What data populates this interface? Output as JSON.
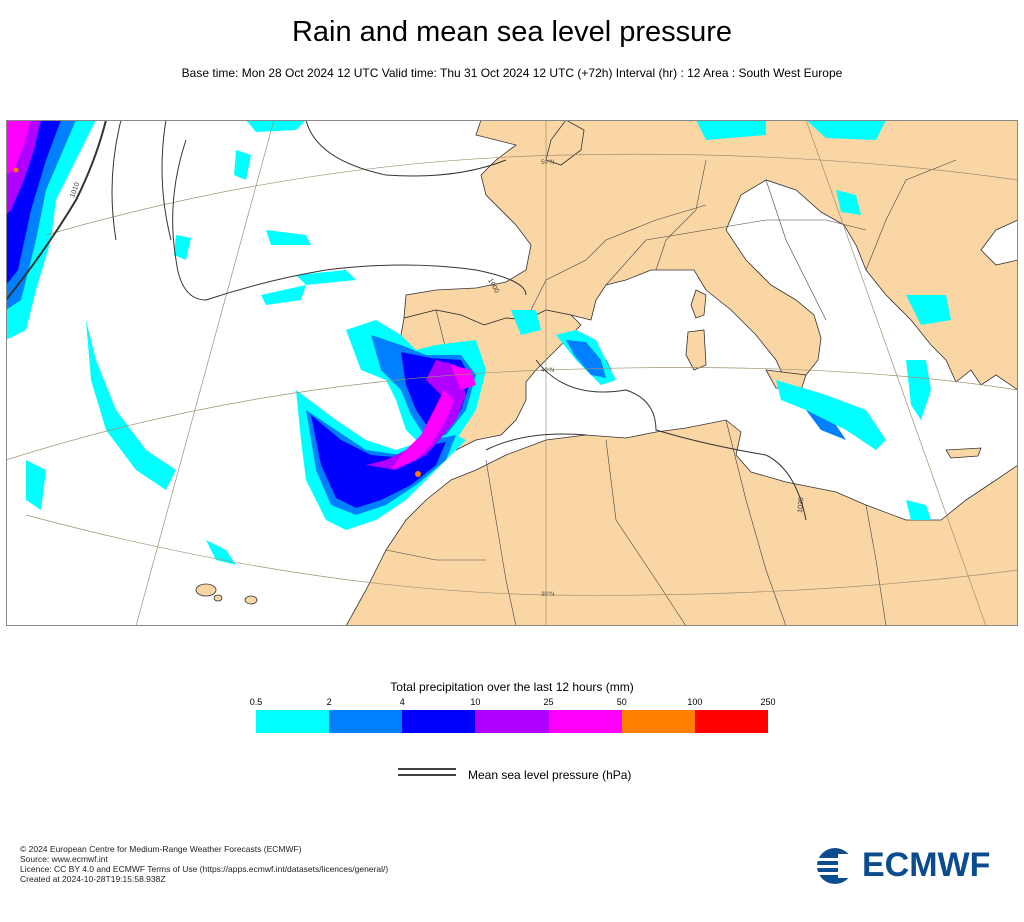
{
  "header": {
    "title": "Rain and mean sea level pressure",
    "subtitle": "Base time: Mon 28 Oct 2024 12 UTC Valid time: Thu 31 Oct 2024 12 UTC (+72h) Interval (hr) : 12 Area : South West Europe"
  },
  "map": {
    "lat_labels": [
      "50°N",
      "40°N",
      "30°N"
    ],
    "isobar_labels": [
      "1010",
      "1000",
      "1020"
    ],
    "colors": {
      "land": "#fad6a5",
      "sea": "#ffffff",
      "border": "#333333"
    }
  },
  "legend": {
    "title": "Total precipitation over the last 12 hours (mm)",
    "ticks": [
      "0.5",
      "2",
      "4",
      "10",
      "25",
      "50",
      "100",
      "250"
    ],
    "colors": [
      "#00ffff",
      "#0080ff",
      "#0000ff",
      "#b000ff",
      "#ff00ff",
      "#ff8000",
      "#ff0000"
    ],
    "pressure_label": "Mean sea level pressure (hPa)"
  },
  "footer": {
    "line1": "© 2024 European Centre for Medium-Range Weather Forecasts (ECMWF)",
    "line2": "Source: www.ecmwf.int",
    "line3": "Licence: CC BY 4.0 and ECMWF Terms of Use (https://apps.ecmwf.int/datasets/licences/general/)",
    "line4": "Created at 2024-10-28T19:15:58.938Z",
    "logo_text": "ECMWF"
  }
}
